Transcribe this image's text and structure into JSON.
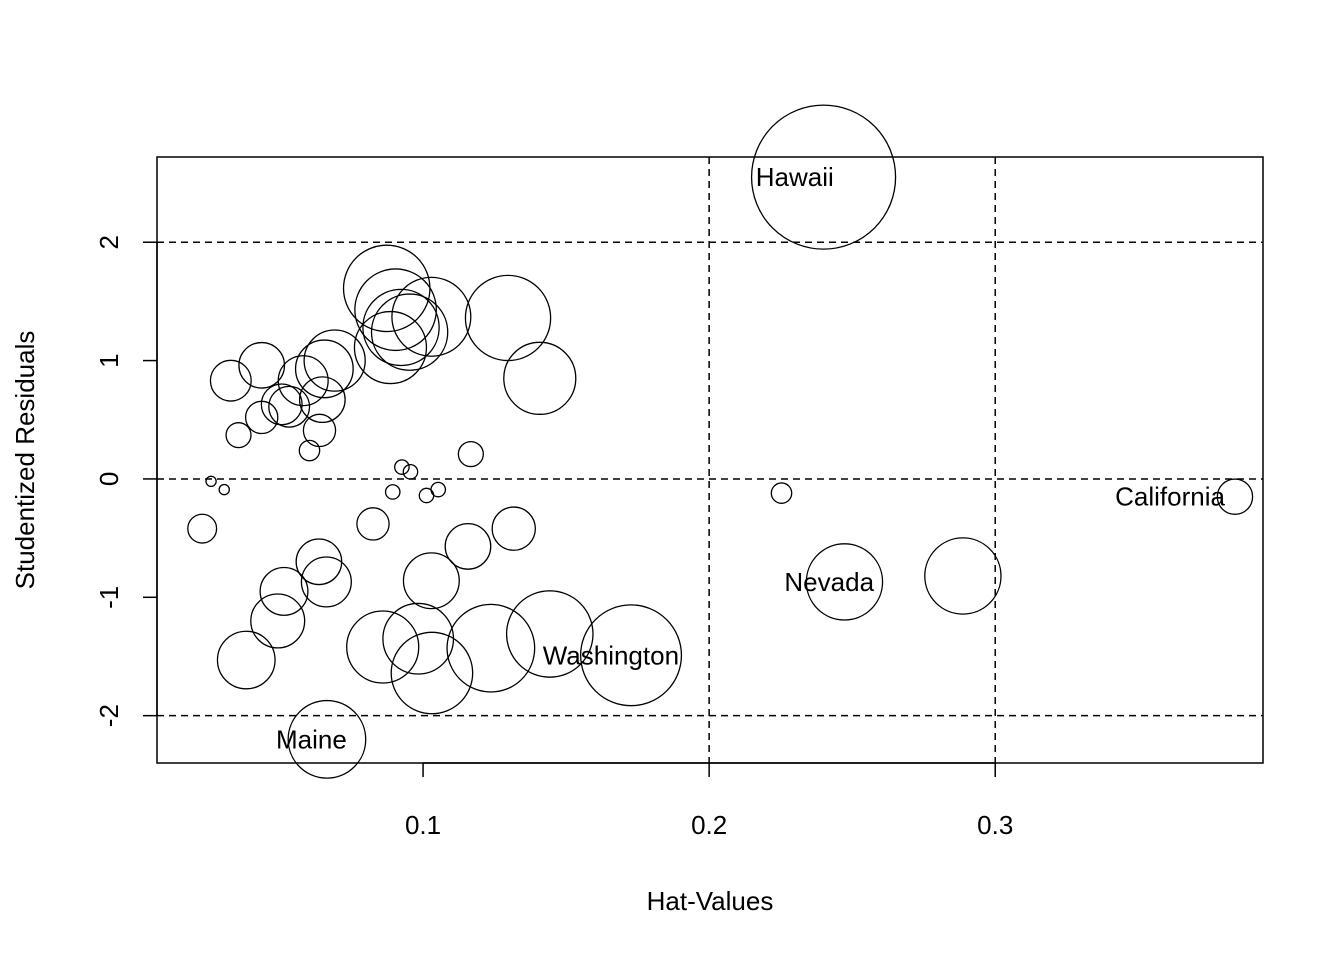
{
  "chart_data": {
    "type": "scatter",
    "title": "",
    "xlabel": "Hat-Values",
    "ylabel": "Studentized Residuals",
    "xlim": [
      0.007,
      0.3936
    ],
    "ylim": [
      -2.4,
      2.72
    ],
    "x_ticks": [
      {
        "value": 0.1,
        "label": "0.1"
      },
      {
        "value": 0.2,
        "label": "0.2"
      },
      {
        "value": 0.3,
        "label": "0.3"
      }
    ],
    "y_ticks": [
      {
        "value": -2,
        "label": "-2"
      },
      {
        "value": -1,
        "label": "-1"
      },
      {
        "value": 0,
        "label": "0"
      },
      {
        "value": 1,
        "label": "1"
      },
      {
        "value": 2,
        "label": "2"
      }
    ],
    "reference_lines": {
      "horizontal": [
        -2,
        0,
        2
      ],
      "vertical": [
        0.2,
        0.3
      ],
      "style": "dashed"
    },
    "bubble_size_meaning": "Cook's distance",
    "points": [
      {
        "x": 0.24,
        "y": 2.55,
        "size": 1.0,
        "label": "Hawaii"
      },
      {
        "x": 0.0873,
        "y": 1.61,
        "size": 0.36
      },
      {
        "x": 0.0904,
        "y": 1.43,
        "size": 0.32
      },
      {
        "x": 0.1029,
        "y": 1.37,
        "size": 0.3
      },
      {
        "x": 0.1297,
        "y": 1.36,
        "size": 0.35
      },
      {
        "x": 0.0923,
        "y": 1.28,
        "size": 0.28
      },
      {
        "x": 0.0953,
        "y": 1.24,
        "size": 0.28
      },
      {
        "x": 0.0886,
        "y": 1.11,
        "size": 0.25
      },
      {
        "x": 0.0691,
        "y": 1.0,
        "size": 0.18
      },
      {
        "x": 0.0655,
        "y": 0.93,
        "size": 0.16
      },
      {
        "x": 0.0436,
        "y": 0.96,
        "size": 0.1
      },
      {
        "x": 0.1408,
        "y": 0.85,
        "size": 0.25
      },
      {
        "x": 0.0328,
        "y": 0.83,
        "size": 0.08
      },
      {
        "x": 0.0581,
        "y": 0.83,
        "size": 0.12
      },
      {
        "x": 0.0648,
        "y": 0.67,
        "size": 0.1
      },
      {
        "x": 0.0506,
        "y": 0.63,
        "size": 0.08
      },
      {
        "x": 0.0532,
        "y": 0.61,
        "size": 0.08
      },
      {
        "x": 0.0436,
        "y": 0.52,
        "size": 0.05
      },
      {
        "x": 0.0638,
        "y": 0.41,
        "size": 0.05
      },
      {
        "x": 0.0355,
        "y": 0.37,
        "size": 0.03
      },
      {
        "x": 0.0603,
        "y": 0.24,
        "size": 0.02
      },
      {
        "x": 0.1167,
        "y": 0.21,
        "size": 0.03
      },
      {
        "x": 0.0926,
        "y": 0.1,
        "size": 0.01
      },
      {
        "x": 0.0956,
        "y": 0.06,
        "size": 0.01
      },
      {
        "x": 0.0259,
        "y": -0.02,
        "size": 0.005
      },
      {
        "x": 0.0305,
        "y": -0.09,
        "size": 0.005
      },
      {
        "x": 0.1053,
        "y": -0.09,
        "size": 0.01
      },
      {
        "x": 0.0894,
        "y": -0.11,
        "size": 0.01
      },
      {
        "x": 0.1012,
        "y": -0.14,
        "size": 0.01
      },
      {
        "x": 0.2253,
        "y": -0.12,
        "size": 0.02
      },
      {
        "x": 0.3838,
        "y": -0.15,
        "size": 0.06,
        "label": "California"
      },
      {
        "x": 0.0825,
        "y": -0.38,
        "size": 0.05
      },
      {
        "x": 0.0228,
        "y": -0.42,
        "size": 0.04
      },
      {
        "x": 0.1317,
        "y": -0.42,
        "size": 0.09
      },
      {
        "x": 0.1157,
        "y": -0.57,
        "size": 0.1
      },
      {
        "x": 0.0636,
        "y": -0.7,
        "size": 0.1
      },
      {
        "x": 0.0662,
        "y": -0.87,
        "size": 0.12
      },
      {
        "x": 0.1029,
        "y": -0.86,
        "size": 0.15
      },
      {
        "x": 0.2473,
        "y": -0.87,
        "size": 0.28,
        "label": "Nevada"
      },
      {
        "x": 0.2887,
        "y": -0.82,
        "size": 0.28
      },
      {
        "x": 0.0514,
        "y": -0.95,
        "size": 0.11
      },
      {
        "x": 0.0492,
        "y": -1.2,
        "size": 0.14
      },
      {
        "x": 0.0983,
        "y": -1.35,
        "size": 0.24
      },
      {
        "x": 0.1443,
        "y": -1.31,
        "size": 0.36
      },
      {
        "x": 0.0859,
        "y": -1.42,
        "size": 0.25
      },
      {
        "x": 0.1237,
        "y": -1.43,
        "size": 0.37
      },
      {
        "x": 0.1727,
        "y": -1.49,
        "size": 0.49,
        "label": "Washington"
      },
      {
        "x": 0.0382,
        "y": -1.53,
        "size": 0.16
      },
      {
        "x": 0.1031,
        "y": -1.64,
        "size": 0.32
      },
      {
        "x": 0.0664,
        "y": -2.2,
        "size": 0.29,
        "label": "Maine"
      }
    ]
  }
}
